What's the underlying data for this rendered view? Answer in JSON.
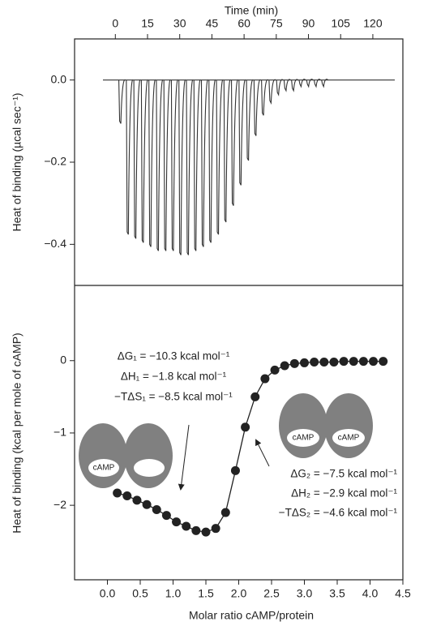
{
  "chart_data": [
    {
      "type": "spike",
      "x_label": "Time (min)",
      "y_label": "Heat of binding (µcal sec⁻¹)",
      "x": [
        2,
        5.5,
        9,
        12.5,
        16,
        19.5,
        23,
        26.5,
        30,
        33.5,
        37,
        40.5,
        44,
        47.5,
        51,
        54.5,
        58,
        61.5,
        65,
        68.5,
        72,
        75.5,
        79,
        82.5,
        86,
        89.5,
        93,
        96.5
      ],
      "values": [
        -0.1,
        -0.37,
        -0.38,
        -0.39,
        -0.4,
        -0.41,
        -0.41,
        -0.41,
        -0.42,
        -0.42,
        -0.41,
        -0.4,
        -0.39,
        -0.37,
        -0.34,
        -0.3,
        -0.25,
        -0.19,
        -0.13,
        -0.08,
        -0.05,
        -0.03,
        -0.02,
        -0.02,
        -0.01,
        -0.01,
        -0.01,
        -0.01
      ],
      "color": "#333333",
      "xlim": [
        -19,
        134
      ],
      "xticks": [
        0,
        15,
        30,
        45,
        60,
        75,
        90,
        105,
        120
      ],
      "ylim": [
        -0.5,
        0.1
      ],
      "yticks": [
        {
          "value": 0,
          "label": "0.0"
        },
        {
          "value": -0.2,
          "label": "−0.2"
        },
        {
          "value": -0.4,
          "label": "−0.4"
        }
      ]
    },
    {
      "type": "scatter",
      "x_label": "Molar ratio cAMP/protein",
      "y_label": "Heat of binding (kcal per mole of cAMP)",
      "x": [
        0.15,
        0.3,
        0.45,
        0.6,
        0.75,
        0.9,
        1.05,
        1.2,
        1.35,
        1.5,
        1.65,
        1.8,
        1.95,
        2.1,
        2.25,
        2.4,
        2.55,
        2.7,
        2.85,
        3.0,
        3.15,
        3.3,
        3.45,
        3.6,
        3.75,
        3.9,
        4.05,
        4.2
      ],
      "values": [
        -1.83,
        -1.87,
        -1.93,
        -1.99,
        -2.06,
        -2.14,
        -2.23,
        -2.29,
        -2.35,
        -2.37,
        -2.32,
        -2.1,
        -1.52,
        -0.92,
        -0.5,
        -0.25,
        -0.13,
        -0.07,
        -0.04,
        -0.03,
        -0.02,
        -0.02,
        -0.02,
        -0.01,
        -0.01,
        -0.01,
        -0.01,
        -0.01
      ],
      "color": "#222222",
      "xlim": [
        -0.5,
        4.5
      ],
      "xticks": [
        {
          "value": 0,
          "label": "0.0"
        },
        0.5,
        {
          "value": 1,
          "label": "1.0"
        },
        1.5,
        {
          "value": 2,
          "label": "2.0"
        },
        2.5,
        {
          "value": 3,
          "label": "3.0"
        },
        3.5,
        {
          "value": 4,
          "label": "4.0"
        },
        4.5
      ],
      "ylim": [
        -3.03,
        1.04
      ],
      "yticks": [
        0,
        {
          "value": -1,
          "label": "−1"
        },
        {
          "value": -2,
          "label": "−2"
        }
      ],
      "annotations": [
        "ΔG₁ = −10.3 kcal mol⁻¹",
        "ΔH₁ = −1.8 kcal mol⁻¹",
        "−TΔS₁ = −8.5 kcal mol⁻¹",
        "ΔG₂ = −7.5 kcal mol⁻¹",
        "ΔH₂ = −2.9 kcal mol⁻¹",
        "−TΔS₂ = −4.6 kcal mol⁻¹"
      ],
      "cartoon_labels": [
        "cAMP",
        "cAMP",
        "cAMP"
      ]
    }
  ]
}
